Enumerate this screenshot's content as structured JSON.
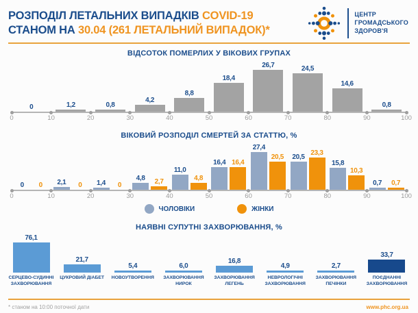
{
  "header": {
    "line1": {
      "dark": "РОЗПОДІЛ ЛЕТАЛЬНИХ ВИПАДКІВ",
      "accent": "COVID-19"
    },
    "line2": {
      "dark": "СТАНОМ НА",
      "accent": "30.04 (261 ЛЕТАЛЬНИЙ ВИПАДОК)*"
    },
    "logo": {
      "line1": "ЦЕНТР",
      "line2": "ГРОМАДСЬКОГО",
      "line3": "ЗДОРОВ'Я"
    }
  },
  "footer": {
    "note": "* станом на 10:00 поточної дати",
    "url": "www.phc.org.ua"
  },
  "colors": {
    "dark_blue": "#1b4d8c",
    "accent_orange": "#ef9421",
    "divider_orange": "#e9a23b",
    "bar_gray": "#a3a3a3",
    "male_blue": "#92a7c4",
    "female_orange": "#f0920b",
    "disease_blue": "#5b9bd5",
    "disease_navy": "#17498c",
    "axis_line": "#b5b5b5",
    "axis_dot": "#9e9e9e",
    "tick_text": "#9b9b9b",
    "note_gray": "#a0a0a0"
  },
  "chart_data": [
    {
      "type": "bar",
      "title": "ВІДСОТОК ПОМЕРЛИХ У ВІКОВИХ ГРУПАХ",
      "xlim": [
        0,
        100
      ],
      "grid": false,
      "x_ticks": [
        0,
        10,
        20,
        30,
        40,
        50,
        60,
        70,
        80,
        90,
        100
      ],
      "age_bands": [
        "0-10",
        "10-20",
        "20-30",
        "30-40",
        "40-50",
        "50-60",
        "60-70",
        "70-80",
        "80-90",
        "90-100"
      ],
      "values": [
        0,
        1.2,
        0.8,
        4.2,
        8.8,
        18.4,
        26.7,
        24.5,
        14.6,
        0.8
      ],
      "labels": [
        "0",
        "1,2",
        "0,8",
        "4,2",
        "8,8",
        "18,4",
        "26,7",
        "24,5",
        "14,6",
        "0,8"
      ],
      "bar_color": "#a3a3a3",
      "label_color": "#1b4d8c"
    },
    {
      "type": "bar",
      "title": "ВІКОВИЙ РОЗПОДІЛ СМЕРТЕЙ ЗА СТАТТЮ, %",
      "xlim": [
        0,
        100
      ],
      "grid": false,
      "legend_position": "bottom",
      "x_ticks": [
        0,
        10,
        20,
        30,
        40,
        50,
        60,
        70,
        80,
        90,
        100
      ],
      "age_bands": [
        "0-10",
        "10-20",
        "20-30",
        "30-40",
        "40-50",
        "50-60",
        "60-70",
        "70-80",
        "80-90",
        "90-100"
      ],
      "series": [
        {
          "name": "ЧОЛОВІКИ",
          "color": "#92a7c4",
          "label_color": "#1b4d8c",
          "values": [
            0,
            2.1,
            1.4,
            4.8,
            11.0,
            16.4,
            27.4,
            20.5,
            15.8,
            0.7
          ],
          "labels": [
            "0",
            "2,1",
            "1,4",
            "4,8",
            "11,0",
            "16,4",
            "27,4",
            "20,5",
            "15,8",
            "0,7"
          ]
        },
        {
          "name": "ЖІНКИ",
          "color": "#f0920b",
          "label_color": "#f0920b",
          "values": [
            0,
            0,
            0,
            2.7,
            4.8,
            16.4,
            20.5,
            23.3,
            10.3,
            0.7
          ],
          "labels": [
            "0",
            "0",
            "0",
            "2,7",
            "4,8",
            "16,4",
            "20,5",
            "23,3",
            "10,3",
            "0,7"
          ]
        }
      ]
    },
    {
      "type": "bar",
      "title": "НАЯВНІ СУПУТНІ ЗАХВОРЮВАННЯ, %",
      "categories": [
        "СЕРЦЕВО-СУДИННІ ЗАХВОРЮВАННЯ",
        "ЦУКРОВИЙ ДІАБЕТ",
        "НОВОУТВОРЕННЯ",
        "ЗАХВОРЮВАННЯ НИРОК",
        "ЗАХВОРЮВАННЯ ЛЕГЕНЬ",
        "НЕВРОЛОГІЧНІ ЗАХВОРЮВАННЯ",
        "ЗАХВОРЮВАННЯ ПЕЧІНКИ",
        "ПОЄДНАННІ ЗАХВОРЮВАННЯ"
      ],
      "values": [
        76.1,
        21.7,
        5.4,
        6.0,
        16.8,
        4.9,
        2.7,
        33.7
      ],
      "labels": [
        "76,1",
        "21,7",
        "5,4",
        "6,0",
        "16,8",
        "4,9",
        "2,7",
        "33,7"
      ],
      "bar_colors": [
        "#5b9bd5",
        "#5b9bd5",
        "#5b9bd5",
        "#5b9bd5",
        "#5b9bd5",
        "#5b9bd5",
        "#5b9bd5",
        "#17498c"
      ]
    }
  ]
}
